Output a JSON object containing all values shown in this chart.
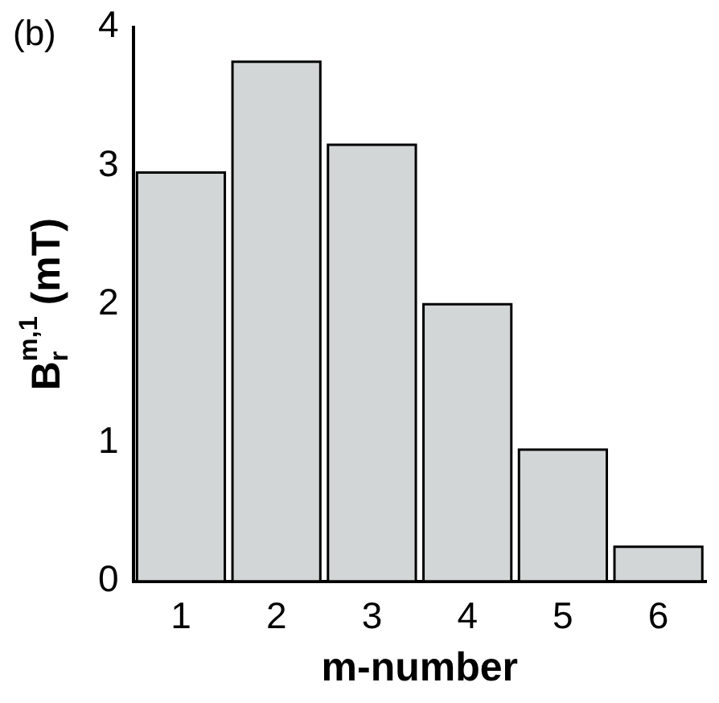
{
  "chart_data": {
    "type": "bar",
    "annotations": [
      "(b)"
    ],
    "xlabel": "m-number",
    "ylabel": "B$_{r}$$^{m,1}$ (mT)",
    "categories": [
      "1",
      "2",
      "3",
      "4",
      "5",
      "6"
    ],
    "values": [
      2.95,
      3.75,
      3.15,
      2.0,
      0.95,
      0.25
    ],
    "color": "#d3d6d6",
    "ylim": [
      0,
      4
    ],
    "yticks": [
      0,
      1,
      2,
      3,
      4
    ],
    "grid": false,
    "legend": false
  }
}
